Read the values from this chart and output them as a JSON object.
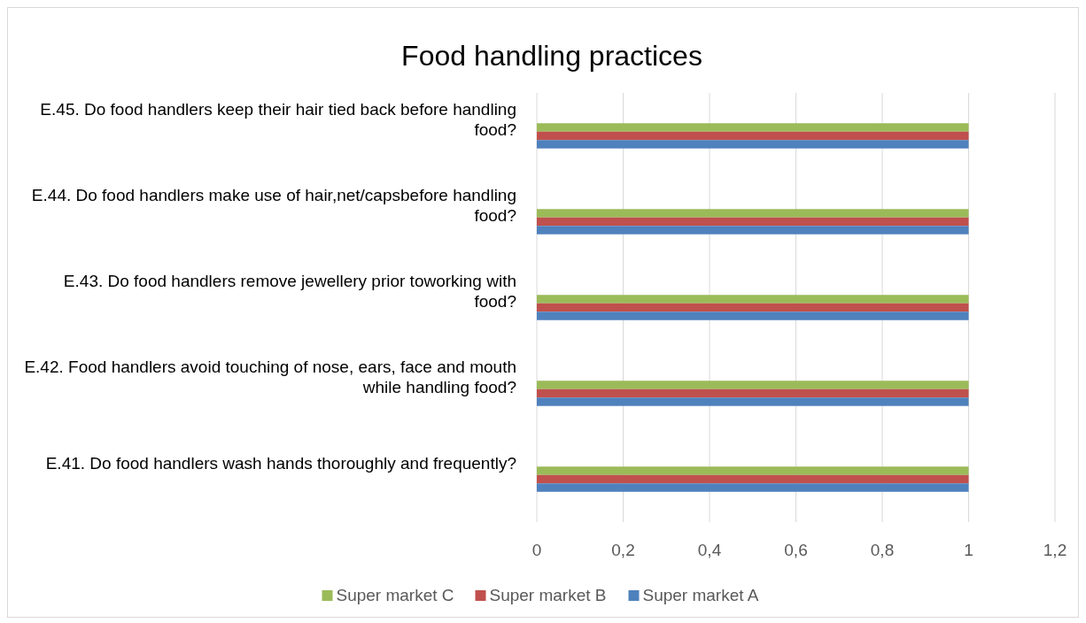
{
  "chart_data": {
    "type": "bar",
    "orientation": "horizontal",
    "title": "Food handling practices",
    "categories": [
      "E.45. Do food handlers keep their hair tied back before handling food?",
      "E.44. Do food handlers make use of hair,net/capsbefore handling food?",
      "E.43. Do food handlers remove jewellery prior toworking with food?",
      "E.42. Food handlers avoid touching of nose, ears, face and mouth while handling food?",
      "E.41. Do food handlers wash hands thoroughly and frequently?"
    ],
    "series": [
      {
        "name": "Super market C",
        "color": "#9bbb59",
        "values": [
          1,
          1,
          1,
          1,
          1
        ]
      },
      {
        "name": "Super market B",
        "color": "#c0504d",
        "values": [
          1,
          1,
          1,
          1,
          1
        ]
      },
      {
        "name": "Super market A",
        "color": "#4f81bd",
        "values": [
          1,
          1,
          1,
          1,
          1
        ]
      }
    ],
    "xlim": [
      0,
      1.2
    ],
    "xticks": [
      0,
      {
        "value": 0.2,
        "label": "0,2"
      },
      {
        "value": 0.4,
        "label": "0,4"
      },
      {
        "value": 0.6,
        "label": "0,6"
      },
      {
        "value": 0.8,
        "label": "0,8"
      },
      1,
      {
        "value": 1.2,
        "label": "1,2"
      }
    ],
    "grid": "x",
    "legend": "bottom"
  }
}
